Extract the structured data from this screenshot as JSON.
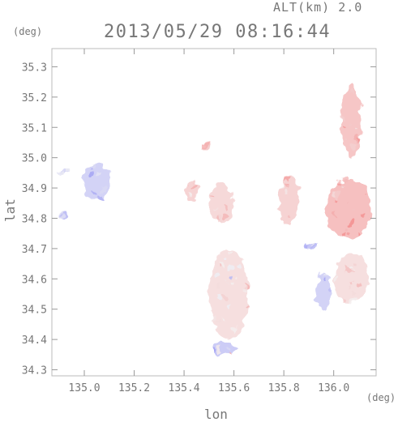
{
  "header": {
    "altitude_label": "ALT(km) 2.0",
    "datetime": "2013/05/29 08:16:44"
  },
  "chart_data": {
    "type": "heatmap",
    "xlabel": "lon",
    "ylabel": "lat",
    "x_unit": "(deg)",
    "y_unit": "(deg)",
    "xlim": [
      134.87,
      136.17
    ],
    "ylim": [
      34.28,
      35.36
    ],
    "x_ticks": [
      135.0,
      135.2,
      135.4,
      135.6,
      135.8,
      136.0
    ],
    "x_tick_labels": [
      "135.0",
      "135.2",
      "135.4",
      "135.6",
      "135.8",
      "136.0"
    ],
    "y_ticks": [
      34.3,
      34.4,
      34.5,
      34.6,
      34.7,
      34.8,
      34.9,
      35.0,
      35.1,
      35.2,
      35.3
    ],
    "y_tick_labels": [
      "34.3",
      "34.4",
      "34.5",
      "34.6",
      "34.7",
      "34.8",
      "34.9",
      "35.0",
      "35.1",
      "35.2",
      "35.3"
    ],
    "grid": false,
    "colors": {
      "positive": "#f08080",
      "negative": "#9090f0",
      "axis": "#777777"
    },
    "regions": [
      {
        "lon": 135.05,
        "lat": 34.92,
        "rlon": 0.06,
        "rlat": 0.06,
        "sign": -1,
        "level": 0.35
      },
      {
        "lon": 134.92,
        "lat": 34.95,
        "rlon": 0.02,
        "rlat": 0.01,
        "sign": -1,
        "level": 0.3
      },
      {
        "lon": 134.92,
        "lat": 34.81,
        "rlon": 0.01,
        "rlat": 0.01,
        "sign": -1,
        "level": 0.5
      },
      {
        "lon": 135.43,
        "lat": 34.89,
        "rlon": 0.03,
        "rlat": 0.03,
        "sign": 1,
        "level": 0.35
      },
      {
        "lon": 135.49,
        "lat": 35.04,
        "rlon": 0.01,
        "rlat": 0.01,
        "sign": 1,
        "level": 0.45
      },
      {
        "lon": 135.55,
        "lat": 34.85,
        "rlon": 0.05,
        "rlat": 0.06,
        "sign": 1,
        "level": 0.3
      },
      {
        "lon": 135.82,
        "lat": 34.86,
        "rlon": 0.04,
        "rlat": 0.08,
        "sign": 1,
        "level": 0.35
      },
      {
        "lon": 136.07,
        "lat": 35.12,
        "rlon": 0.04,
        "rlat": 0.12,
        "sign": 1,
        "level": 0.45
      },
      {
        "lon": 136.06,
        "lat": 34.83,
        "rlon": 0.09,
        "rlat": 0.1,
        "sign": 1,
        "level": 0.5
      },
      {
        "lon": 136.07,
        "lat": 34.6,
        "rlon": 0.07,
        "rlat": 0.08,
        "sign": 1,
        "level": 0.25
      },
      {
        "lon": 135.96,
        "lat": 34.56,
        "rlon": 0.03,
        "rlat": 0.06,
        "sign": -1,
        "level": 0.35
      },
      {
        "lon": 135.91,
        "lat": 34.71,
        "rlon": 0.02,
        "rlat": 0.01,
        "sign": -1,
        "level": 0.45
      },
      {
        "lon": 135.58,
        "lat": 34.55,
        "rlon": 0.08,
        "rlat": 0.15,
        "sign": 1,
        "level": 0.25
      },
      {
        "lon": 135.56,
        "lat": 34.37,
        "rlon": 0.05,
        "rlat": 0.02,
        "sign": -1,
        "level": 0.4
      }
    ]
  }
}
